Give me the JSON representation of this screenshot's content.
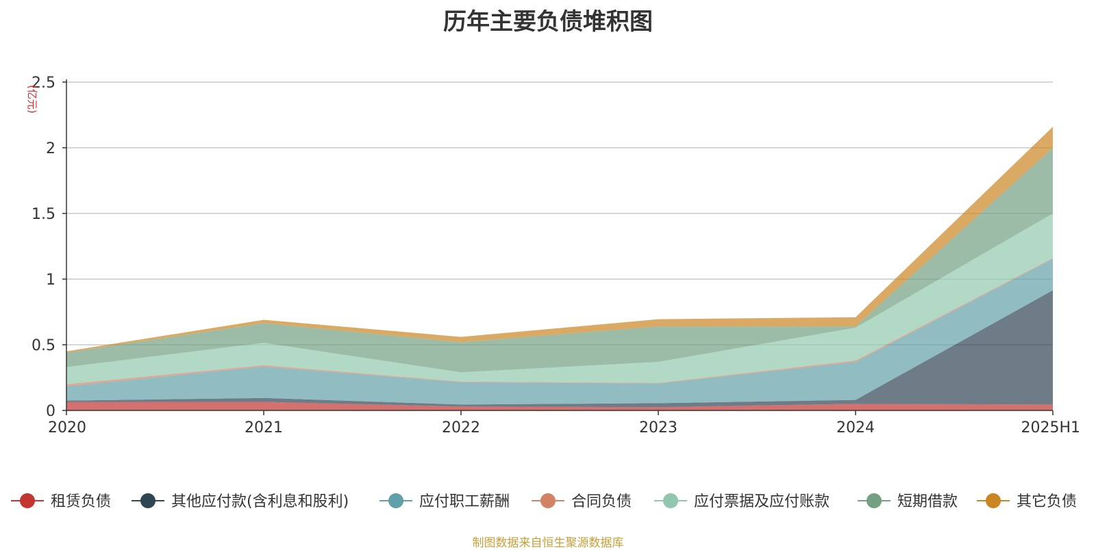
{
  "chart_data": {
    "type": "area",
    "stacked": true,
    "title": "历年主要负债堆积图",
    "ylabel": "(亿元)",
    "xlabel": "",
    "categories": [
      "2020",
      "2021",
      "2022",
      "2023",
      "2024",
      "2025H1"
    ],
    "ylim": [
      0,
      2.5
    ],
    "yticks": [
      "0",
      "0.5",
      "1",
      "1.5",
      "2",
      "2.5"
    ],
    "grid": true,
    "legend_position": "bottom",
    "series": [
      {
        "name": "租赁负债",
        "color": "#c23531",
        "values": [
          0.065,
          0.065,
          0.03,
          0.025,
          0.05,
          0.045
        ]
      },
      {
        "name": "其他应付款(含利息和股利)",
        "color": "#2f4554",
        "values": [
          0.01,
          0.03,
          0.015,
          0.03,
          0.03,
          0.87
        ]
      },
      {
        "name": "应付职工薪酬",
        "color": "#61a0a8",
        "values": [
          0.11,
          0.24,
          0.17,
          0.15,
          0.29,
          0.24
        ]
      },
      {
        "name": "合同负债",
        "color": "#d48265",
        "values": [
          0.015,
          0.01,
          0.005,
          0.005,
          0.01,
          0.005
        ]
      },
      {
        "name": "应付票据及应付账款",
        "color": "#91c7ae",
        "values": [
          0.13,
          0.17,
          0.07,
          0.16,
          0.25,
          0.34
        ]
      },
      {
        "name": "短期借款",
        "color": "#749f83",
        "values": [
          0.11,
          0.15,
          0.23,
          0.27,
          0.01,
          0.5
        ]
      },
      {
        "name": "其它负债",
        "color": "#ca8622",
        "values": [
          0.01,
          0.025,
          0.04,
          0.055,
          0.07,
          0.16
        ]
      }
    ],
    "source": "制图数据来自恒生聚源数据库"
  }
}
